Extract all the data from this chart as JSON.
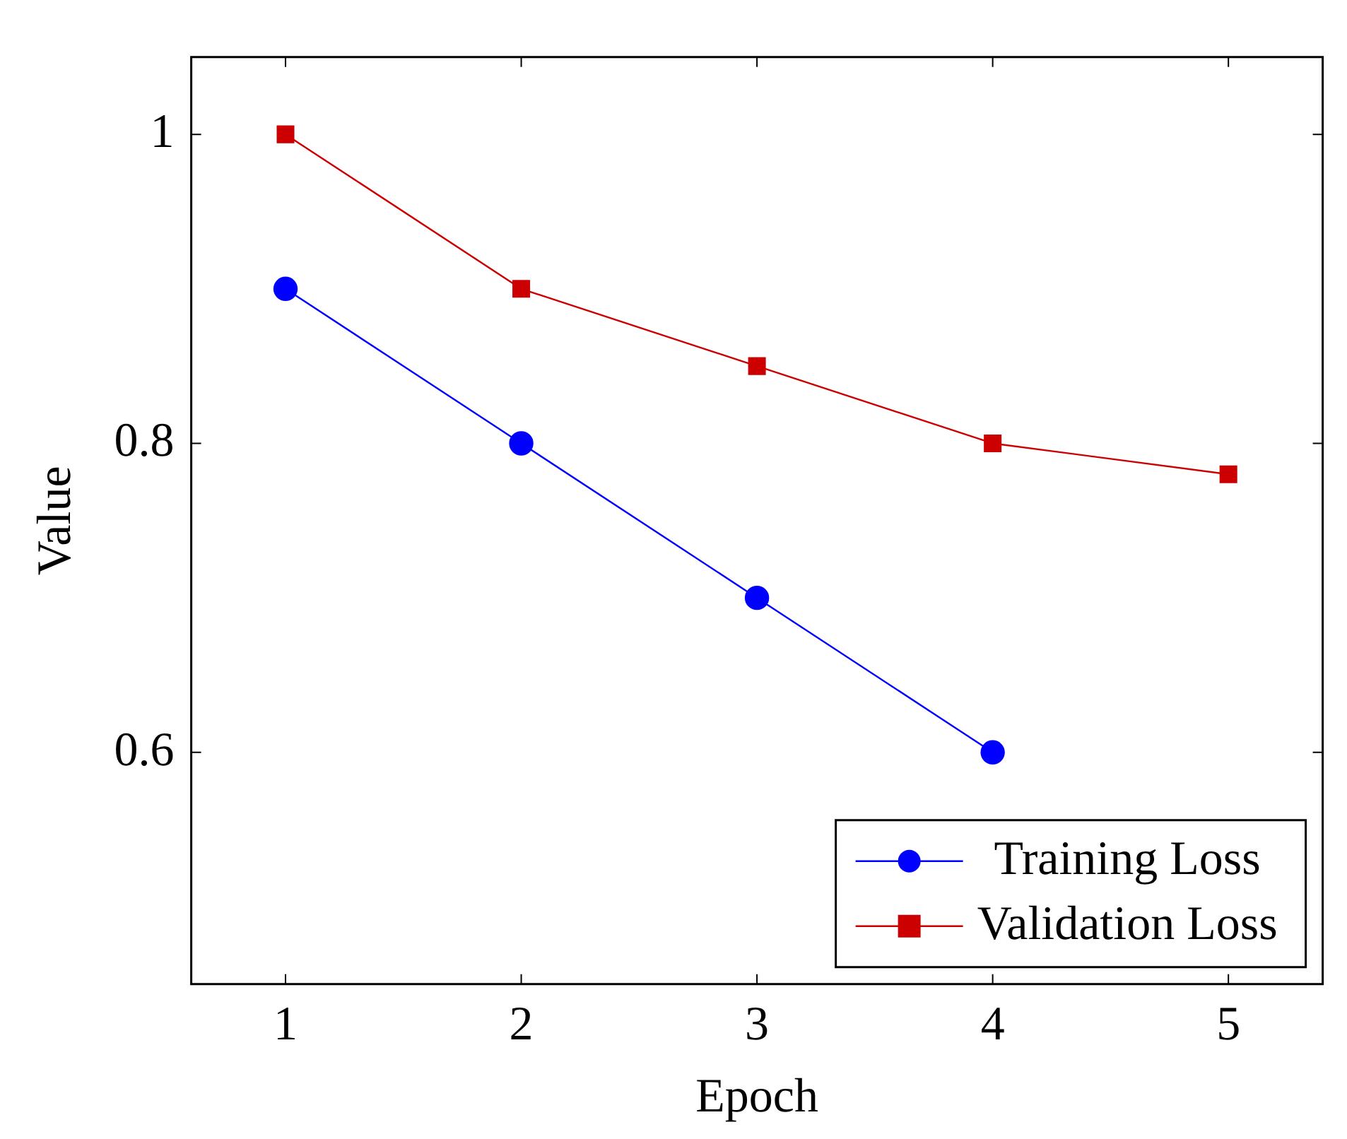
{
  "chart_data": {
    "type": "line",
    "xlabel": "Epoch",
    "ylabel": "Value",
    "x": [
      1,
      2,
      3,
      4,
      5
    ],
    "series": [
      {
        "name": "Training Loss",
        "color": "#0000ff",
        "marker": "circle",
        "values": [
          0.9,
          0.8,
          0.7,
          0.6,
          null
        ]
      },
      {
        "name": "Validation Loss",
        "color": "#cc0000",
        "marker": "square",
        "values": [
          1,
          0.9,
          0.85,
          0.8,
          0.78
        ]
      }
    ],
    "xlim": [
      0.6,
      5.4
    ],
    "xticks": [
      1,
      2,
      3,
      4,
      5
    ],
    "ylim": [
      0.45,
      1.05
    ],
    "yticks": [
      0.6,
      0.8,
      1
    ],
    "grid": false,
    "legend": "bottom right"
  }
}
